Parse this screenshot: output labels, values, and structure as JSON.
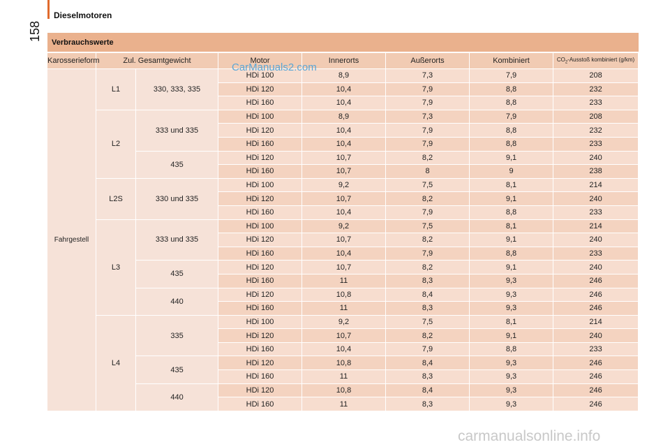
{
  "header": {
    "chapter_title": "Dieselmotoren",
    "page_number": "158"
  },
  "section": {
    "title": "Verbrauchswerte"
  },
  "table": {
    "columns": [
      "Karosserieform",
      "Zul. Gesamtgewicht",
      "Motor",
      "Innerorts",
      "Außerorts",
      "Kombiniert",
      "CO2-Ausstoß kombiniert (g/km)"
    ],
    "co2_header": {
      "prefix": "CO",
      "sub": "2",
      "suffix": "-Ausstoß kombiniert (g/km)"
    },
    "karosserieform": "Fahrgestell",
    "groups": [
      {
        "length": "L1",
        "weights": [
          {
            "weight": "330, 333, 335",
            "rows": [
              [
                "HDi 100",
                "8,9",
                "7,3",
                "7,9",
                "208"
              ],
              [
                "HDi 120",
                "10,4",
                "7,9",
                "8,8",
                "232"
              ],
              [
                "HDi 160",
                "10,4",
                "7,9",
                "8,8",
                "233"
              ]
            ]
          }
        ]
      },
      {
        "length": "L2",
        "weights": [
          {
            "weight": "333 und 335",
            "rows": [
              [
                "HDi 100",
                "8,9",
                "7,3",
                "7,9",
                "208"
              ],
              [
                "HDi 120",
                "10,4",
                "7,9",
                "8,8",
                "232"
              ],
              [
                "HDi 160",
                "10,4",
                "7,9",
                "8,8",
                "233"
              ]
            ]
          },
          {
            "weight": "435",
            "rows": [
              [
                "HDi 120",
                "10,7",
                "8,2",
                "9,1",
                "240"
              ],
              [
                "HDi 160",
                "10,7",
                "8",
                "9",
                "238"
              ]
            ]
          }
        ]
      },
      {
        "length": "L2S",
        "weights": [
          {
            "weight": "330 und 335",
            "rows": [
              [
                "HDi 100",
                "9,2",
                "7,5",
                "8,1",
                "214"
              ],
              [
                "HDi 120",
                "10,7",
                "8,2",
                "9,1",
                "240"
              ],
              [
                "HDi 160",
                "10,4",
                "7,9",
                "8,8",
                "233"
              ]
            ]
          }
        ]
      },
      {
        "length": "L3",
        "weights": [
          {
            "weight": "333 und 335",
            "rows": [
              [
                "HDi 100",
                "9,2",
                "7,5",
                "8,1",
                "214"
              ],
              [
                "HDi 120",
                "10,7",
                "8,2",
                "9,1",
                "240"
              ],
              [
                "HDi 160",
                "10,4",
                "7,9",
                "8,8",
                "233"
              ]
            ]
          },
          {
            "weight": "435",
            "rows": [
              [
                "HDi 120",
                "10,7",
                "8,2",
                "9,1",
                "240"
              ],
              [
                "HDi 160",
                "11",
                "8,3",
                "9,3",
                "246"
              ]
            ]
          },
          {
            "weight": "440",
            "rows": [
              [
                "HDi 120",
                "10,8",
                "8,4",
                "9,3",
                "246"
              ],
              [
                "HDi 160",
                "11",
                "8,3",
                "9,3",
                "246"
              ]
            ]
          }
        ]
      },
      {
        "length": "L4",
        "weights": [
          {
            "weight": "335",
            "rows": [
              [
                "HDi 100",
                "9,2",
                "7,5",
                "8,1",
                "214"
              ],
              [
                "HDi 120",
                "10,7",
                "8,2",
                "9,1",
                "240"
              ],
              [
                "HDi 160",
                "10,4",
                "7,9",
                "8,8",
                "233"
              ]
            ]
          },
          {
            "weight": "435",
            "rows": [
              [
                "HDi 120",
                "10,8",
                "8,4",
                "9,3",
                "246"
              ],
              [
                "HDi 160",
                "11",
                "8,3",
                "9,3",
                "246"
              ]
            ]
          },
          {
            "weight": "440",
            "rows": [
              [
                "HDi 120",
                "10,8",
                "8,4",
                "9,3",
                "246"
              ],
              [
                "HDi 160",
                "11",
                "8,3",
                "9,3",
                "246"
              ]
            ]
          }
        ]
      }
    ]
  },
  "watermarks": {
    "top": "CarManuals2.com",
    "bottom": "carmanualsonline.info"
  }
}
